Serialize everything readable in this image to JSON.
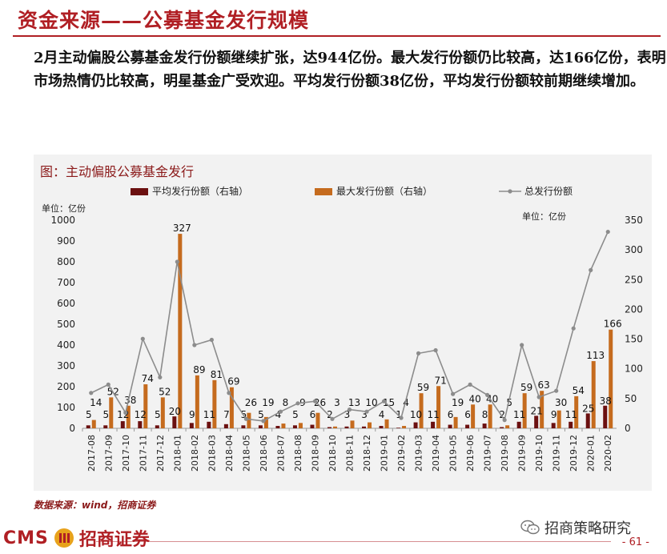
{
  "page": {
    "title": "资金来源——公募基金发行规模",
    "intro": "2月主动偏股公募基金发行份额继续扩张，达944亿份。最大发行份额仍比较高，达166亿份，表明市场热情仍比较高，明星基金广受欢迎。平均发行份额38亿份，平均发行份额较前期继续增加。",
    "chart_title": "图：主动偏股公募基金发行",
    "source": "数据来源：wind，招商证券",
    "logo_text": "CMS",
    "logo_cn": "招商证券",
    "wechat": "招商策略研究",
    "page_number": "- 61 -"
  },
  "chart_data": {
    "type": "bar+line",
    "unit_left": "单位：亿份",
    "unit_right": "单位：亿份",
    "y_left_ticks": [
      "0",
      "100",
      "200",
      "300",
      "400",
      "500",
      "600",
      "700",
      "800",
      "900",
      "1000"
    ],
    "y_right_ticks": [
      "0",
      "50",
      "100",
      "150",
      "200",
      "250",
      "300",
      "350"
    ],
    "ylim_left": [
      0,
      1000
    ],
    "ylim_right": [
      0,
      350
    ],
    "legend": [
      "平均发行份额（右轴）",
      "最大发行份额（右轴）",
      "总发行份额"
    ],
    "colors": {
      "avg": "#6b1010",
      "max": "#c56b1e",
      "total": "#8c8c8c"
    },
    "categories": [
      "2017-08",
      "2017-09",
      "2017-10",
      "2017-11",
      "2017-12",
      "2018-01",
      "2018-02",
      "2018-03",
      "2018-04",
      "2018-05",
      "2018-06",
      "2018-07",
      "2018-08",
      "2018-09",
      "2018-10",
      "2018-11",
      "2018-12",
      "2019-01",
      "2019-02",
      "2019-03",
      "2019-04",
      "2019-05",
      "2019-06",
      "2019-07",
      "2019-08",
      "2019-09",
      "2019-10",
      "2019-11",
      "2019-12",
      "2020-01",
      "2020-02"
    ],
    "series": [
      {
        "name": "平均发行份额（右轴）",
        "axis": "right",
        "values": [
          5,
          5,
          12,
          12,
          5,
          20,
          9,
          11,
          7,
          5,
          5,
          4,
          5,
          6,
          2,
          3,
          3,
          4,
          1,
          10,
          11,
          6,
          6,
          8,
          2,
          11,
          21,
          9,
          11,
          25,
          38
        ]
      },
      {
        "name": "最大发行份额（右轴）",
        "axis": "right",
        "values": [
          14,
          52,
          38,
          74,
          52,
          327,
          89,
          81,
          69,
          26,
          19,
          8,
          9,
          26,
          3,
          13,
          10,
          15,
          4,
          59,
          71,
          19,
          40,
          40,
          5,
          59,
          63,
          30,
          54,
          113,
          166
        ]
      },
      {
        "name": "总发行份额",
        "axis": "left",
        "values": [
          170,
          210,
          75,
          430,
          245,
          800,
          400,
          425,
          170,
          45,
          35,
          80,
          120,
          130,
          45,
          90,
          80,
          130,
          50,
          360,
          375,
          165,
          210,
          160,
          40,
          400,
          150,
          180,
          480,
          760,
          944
        ]
      }
    ],
    "avg_labels": [
      "5",
      "5",
      "12",
      "12",
      "5",
      "20",
      "9",
      "11",
      "7",
      "5",
      "5",
      "4",
      "5",
      "6",
      "2",
      "3",
      "3",
      "4",
      "1",
      "10",
      "11",
      "6",
      "6",
      "8",
      "2",
      "11",
      "21",
      "9",
      "11",
      "25",
      "38"
    ],
    "max_labels": [
      "14",
      "52",
      "38",
      "74",
      "52",
      "327",
      "89",
      "81",
      "69",
      "26",
      "19",
      "8",
      "9",
      "26",
      "3",
      "13",
      "10",
      "15",
      "4",
      "59",
      "71",
      "19",
      "40",
      "40",
      "5",
      "59",
      "63",
      "30",
      "54",
      "113",
      "166"
    ]
  }
}
